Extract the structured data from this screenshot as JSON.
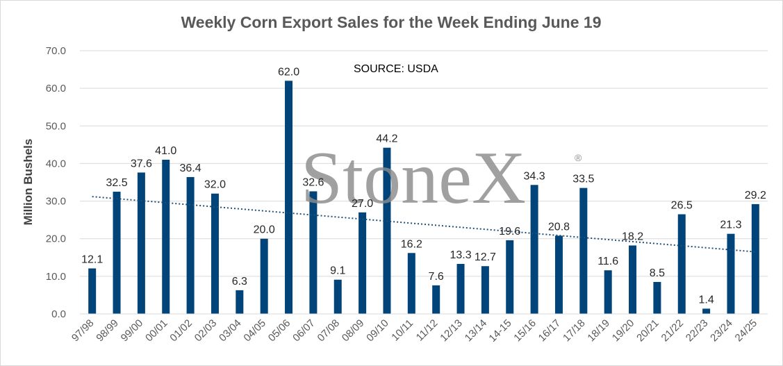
{
  "chart_data": {
    "type": "bar",
    "title": "Weekly Corn Export Sales for the Week Ending June 19",
    "ylabel": "Million Bushels",
    "xlabel": "",
    "ylim": [
      0,
      70
    ],
    "yticks": [
      "0.0",
      "10.0",
      "20.0",
      "30.0",
      "40.0",
      "50.0",
      "60.0",
      "70.0"
    ],
    "categories": [
      "97/98",
      "98/99",
      "99/00",
      "00/01",
      "01/02",
      "02/03",
      "03/04",
      "04/05",
      "05/06",
      "06/07",
      "07/08",
      "08/09",
      "09/10",
      "10/11",
      "11/12",
      "12/13",
      "13/14",
      "14-15",
      "15/16",
      "16/17",
      "17/18",
      "18/19",
      "19/20",
      "20/21",
      "21/22",
      "22/23",
      "23/24",
      "24/25"
    ],
    "values": [
      12.1,
      32.5,
      37.6,
      41.0,
      36.4,
      32.0,
      6.3,
      20.0,
      62.0,
      32.6,
      9.1,
      27.0,
      44.2,
      16.2,
      7.6,
      13.3,
      12.7,
      19.6,
      34.3,
      20.8,
      33.5,
      11.6,
      18.2,
      8.5,
      26.5,
      1.4,
      21.3,
      29.2
    ],
    "data_labels": [
      "12.1",
      "32.5",
      "37.6",
      "41.0",
      "36.4",
      "32.0",
      "6.3",
      "20.0",
      "62.0",
      "32.6",
      "9.1",
      "27.0",
      "44.2",
      "16.2",
      "7.6",
      "13.3",
      "12.7",
      "19.6",
      "34.3",
      "20.8",
      "33.5",
      "11.6",
      "18.2",
      "8.5",
      "26.5",
      "1.4",
      "21.3",
      "29.2"
    ],
    "trendline": {
      "type": "linear",
      "style": "dotted",
      "start": 31.2,
      "end": 16.5
    },
    "grid": true,
    "legend": "none",
    "annotation": "SOURCE: USDA",
    "bar_color": "#004479",
    "trend_color": "#1f4e79"
  },
  "watermark": {
    "text": "StoneX",
    "mark": "®"
  }
}
